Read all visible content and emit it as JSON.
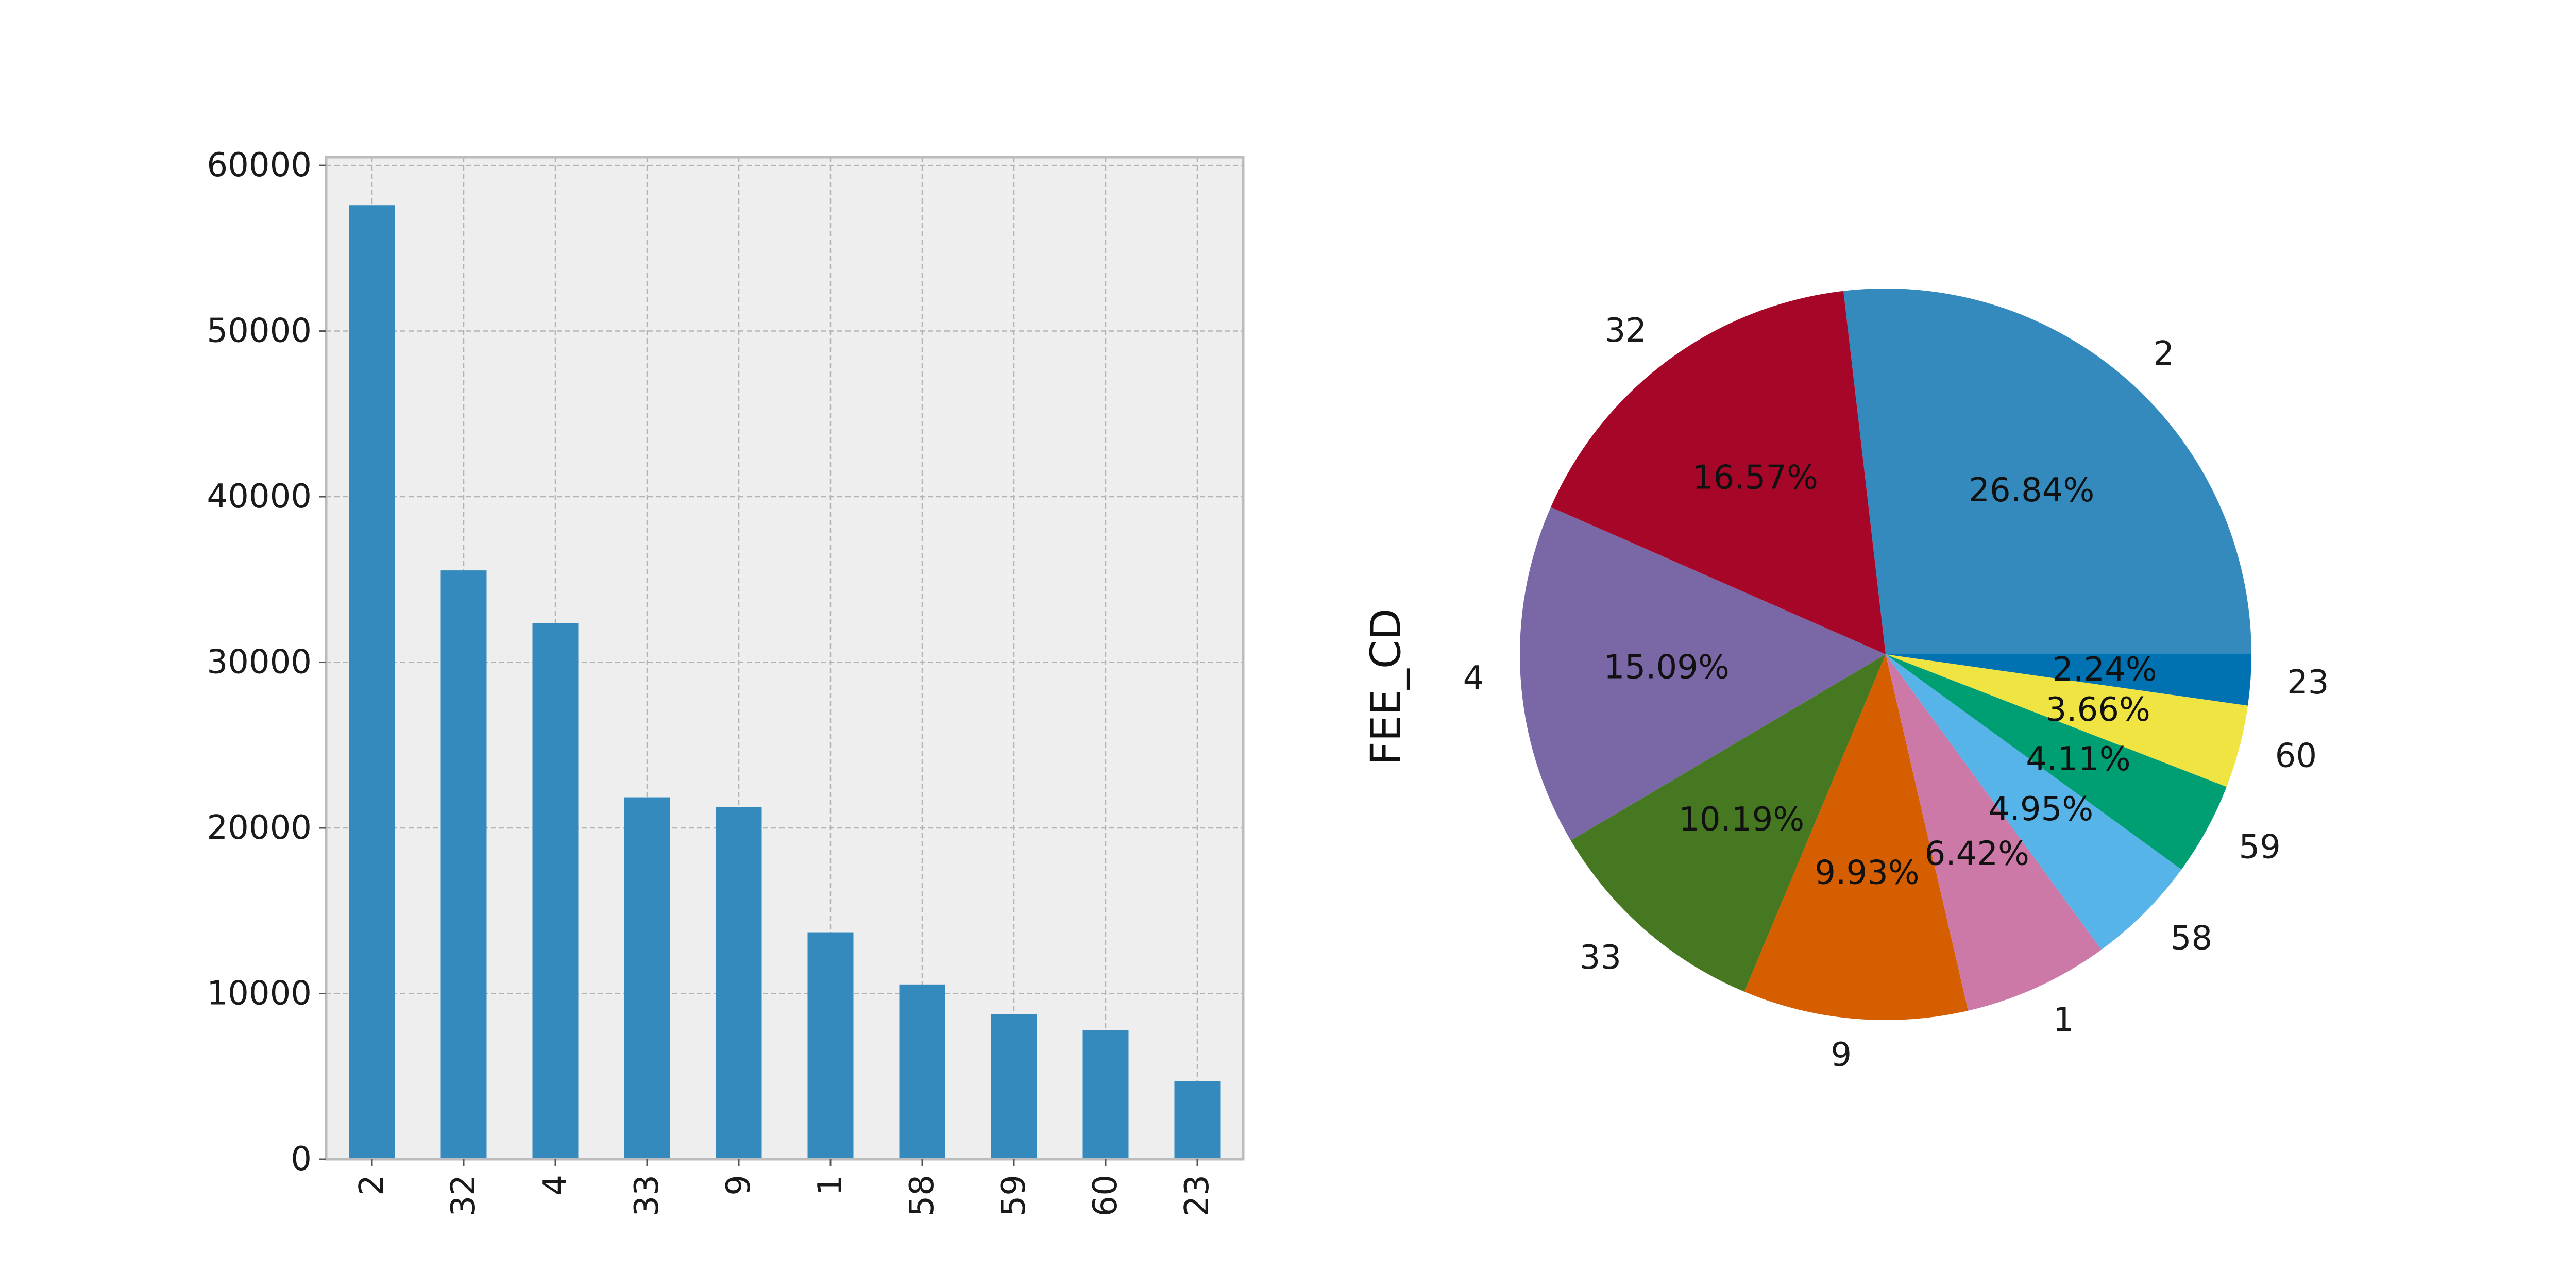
{
  "chart_data": [
    {
      "type": "bar",
      "title": "",
      "xlabel": "",
      "ylabel": "",
      "categories": [
        "2",
        "32",
        "4",
        "33",
        "9",
        "1",
        "58",
        "59",
        "60",
        "23"
      ],
      "values": [
        57600,
        35550,
        32350,
        21850,
        21250,
        13700,
        10550,
        8750,
        7800,
        4700
      ],
      "ylim": [
        0,
        60500
      ],
      "yticks": [
        0,
        10000,
        20000,
        30000,
        40000,
        50000,
        60000
      ],
      "grid": true,
      "colors": {
        "bar": "#348ABD",
        "background": "#EEEEEE",
        "grid": "#B3B3B3",
        "frame": "#BCBCBC"
      }
    },
    {
      "type": "pie",
      "title": "",
      "ylabel": "FEE_CD",
      "categories": [
        "2",
        "32",
        "4",
        "33",
        "9",
        "1",
        "58",
        "59",
        "60",
        "23"
      ],
      "values": [
        26.84,
        16.57,
        15.09,
        10.19,
        9.93,
        6.42,
        4.95,
        4.11,
        3.66,
        2.24
      ],
      "labels_pct": [
        "26.84%",
        "16.57%",
        "15.09%",
        "10.19%",
        "9.93%",
        "6.42%",
        "4.95%",
        "4.11%",
        "3.66%",
        "2.24%"
      ],
      "colors": [
        "#348ABD",
        "#A60628",
        "#7A68A6",
        "#467821",
        "#D55E00",
        "#CC79A7",
        "#56B4E9",
        "#009E73",
        "#F0E442",
        "#0072B2"
      ]
    }
  ]
}
